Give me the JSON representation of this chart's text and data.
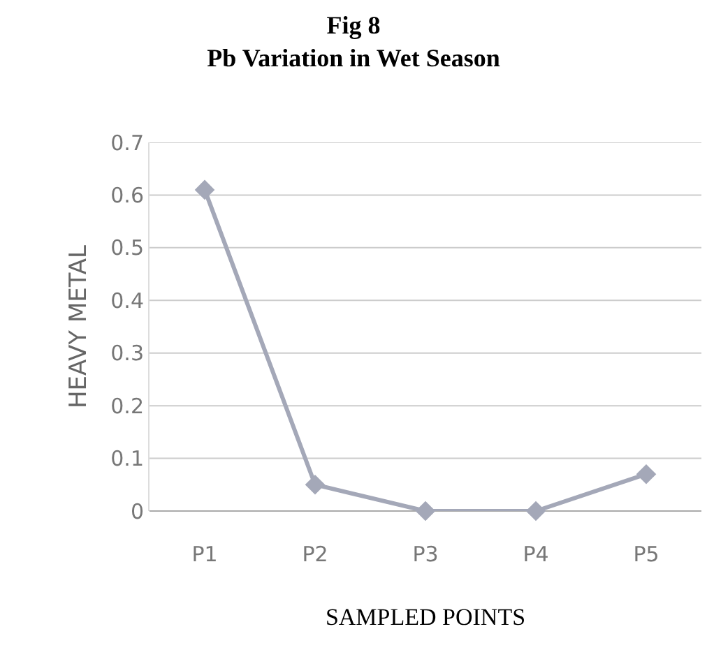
{
  "chart_data": {
    "type": "line",
    "title": "Fig 8\nPb Variation in Wet Season",
    "xlabel": "SAMPLED POINTS",
    "ylabel": "HEAVY METAL",
    "categories": [
      "P1",
      "P2",
      "P3",
      "P4",
      "P5"
    ],
    "series": [
      {
        "color": "#a4a8b8",
        "values": [
          0.61,
          0.05,
          0,
          0,
          0.07
        ]
      }
    ],
    "ylim": [
      0,
      0.7
    ],
    "yticks": [
      0,
      0.1,
      0.2,
      0.3,
      0.4,
      0.5,
      0.6,
      0.7
    ],
    "grid": "y",
    "marker": "diamond",
    "line_style": "solid"
  }
}
